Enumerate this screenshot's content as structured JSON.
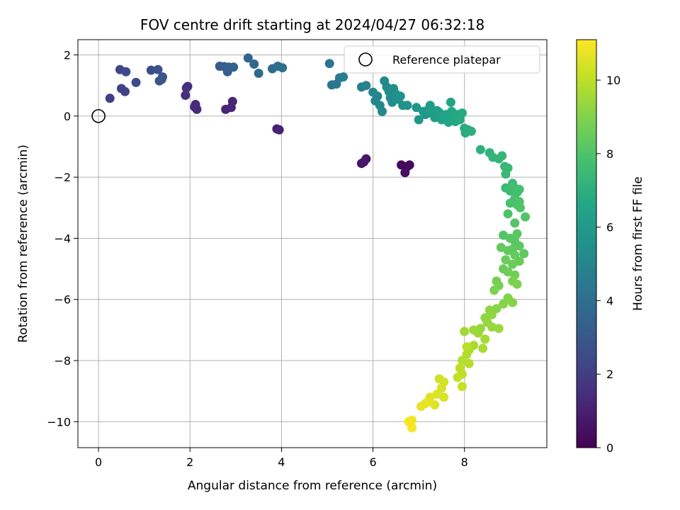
{
  "chart_data": {
    "type": "scatter",
    "title": "FOV centre drift starting at 2024/04/27 06:32:18",
    "xlabel": "Angular distance from reference (arcmin)",
    "ylabel": "Rotation from reference (arcmin)",
    "colorbar_label": "Hours from first FF file",
    "xlim": [
      -0.45,
      9.8
    ],
    "ylim": [
      -10.85,
      2.5
    ],
    "clim": [
      0,
      11.1
    ],
    "colormap": "viridis",
    "grid": true,
    "x_ticks": [
      0,
      2,
      4,
      6,
      8
    ],
    "y_ticks": [
      2,
      0,
      -2,
      -4,
      -6,
      -8,
      -10
    ],
    "colorbar_ticks": [
      0,
      2,
      4,
      6,
      8,
      10
    ],
    "x_tick_labels": [
      "0",
      "2",
      "4",
      "6",
      "8"
    ],
    "y_tick_labels": [
      "2",
      "0",
      "−2",
      "−4",
      "−6",
      "−8",
      "−10"
    ],
    "colorbar_tick_labels": [
      "0",
      "2",
      "4",
      "6",
      "8",
      "10"
    ],
    "reference": {
      "x": 0,
      "y": 0,
      "label": "Reference platepar"
    },
    "legend": {
      "position": "top-right",
      "entries": [
        "Reference platepar"
      ]
    },
    "series": [
      {
        "points": [
          [
            6.62,
            -1.6,
            0.2
          ],
          [
            6.75,
            -1.65,
            0.3
          ],
          [
            6.8,
            -1.6,
            0.35
          ],
          [
            6.7,
            -1.85,
            0.4
          ],
          [
            5.75,
            -1.55,
            0.6
          ],
          [
            5.85,
            -1.4,
            0.65
          ],
          [
            5.8,
            -1.5,
            0.7
          ],
          [
            3.9,
            -0.42,
            0.9
          ],
          [
            3.95,
            -0.45,
            1.0
          ],
          [
            2.78,
            0.22,
            1.1
          ],
          [
            2.9,
            0.28,
            1.15
          ],
          [
            2.93,
            0.48,
            1.2
          ],
          [
            2.1,
            0.3,
            1.3
          ],
          [
            2.15,
            0.22,
            1.35
          ],
          [
            2.12,
            0.38,
            1.4
          ],
          [
            1.9,
            0.68,
            1.5
          ],
          [
            1.92,
            0.92,
            1.55
          ],
          [
            1.95,
            0.97,
            1.6
          ],
          [
            0.25,
            0.58,
            2.0
          ],
          [
            0.5,
            0.9,
            2.1
          ],
          [
            0.58,
            0.8,
            2.2
          ],
          [
            0.47,
            1.52,
            2.3
          ],
          [
            0.6,
            1.45,
            2.4
          ],
          [
            0.82,
            1.1,
            2.5
          ],
          [
            1.15,
            1.5,
            2.6
          ],
          [
            1.3,
            1.52,
            2.7
          ],
          [
            1.33,
            1.15,
            2.8
          ],
          [
            1.4,
            1.28,
            2.9
          ],
          [
            1.38,
            1.2,
            3.0
          ],
          [
            2.65,
            1.63,
            3.2
          ],
          [
            2.75,
            1.62,
            3.25
          ],
          [
            2.82,
            1.45,
            3.3
          ],
          [
            2.85,
            1.6,
            3.35
          ],
          [
            2.95,
            1.6,
            3.4
          ],
          [
            3.27,
            1.9,
            3.6
          ],
          [
            3.4,
            1.7,
            3.7
          ],
          [
            3.5,
            1.4,
            3.8
          ],
          [
            3.8,
            1.55,
            3.9
          ],
          [
            3.92,
            1.63,
            4.0
          ],
          [
            4.02,
            1.58,
            4.05
          ],
          [
            5.05,
            1.72,
            4.3
          ],
          [
            5.1,
            1.02,
            4.4
          ],
          [
            5.2,
            1.05,
            4.5
          ],
          [
            5.27,
            1.25,
            4.6
          ],
          [
            5.35,
            1.28,
            4.7
          ],
          [
            5.75,
            0.95,
            4.8
          ],
          [
            5.85,
            1.0,
            4.9
          ],
          [
            6.0,
            0.78,
            5.0
          ],
          [
            6.05,
            0.5,
            5.0
          ],
          [
            6.1,
            0.65,
            5.05
          ],
          [
            6.15,
            0.35,
            5.1
          ],
          [
            6.2,
            0.15,
            5.15
          ],
          [
            6.25,
            1.15,
            5.2
          ],
          [
            6.3,
            0.95,
            5.25
          ],
          [
            6.35,
            0.8,
            5.3
          ],
          [
            6.38,
            0.6,
            5.35
          ],
          [
            6.42,
            0.45,
            5.4
          ],
          [
            6.45,
            0.9,
            5.45
          ],
          [
            6.5,
            0.72,
            5.5
          ],
          [
            6.55,
            0.55,
            5.55
          ],
          [
            6.6,
            0.65,
            5.6
          ],
          [
            6.65,
            0.35,
            5.65
          ],
          [
            6.75,
            0.35,
            5.7
          ],
          [
            6.95,
            0.28,
            5.8
          ],
          [
            7.0,
            -0.12,
            5.85
          ],
          [
            7.1,
            0.15,
            5.9
          ],
          [
            7.15,
            0.05,
            5.95
          ],
          [
            7.2,
            0.2,
            6.0
          ],
          [
            7.25,
            0.35,
            6.05
          ],
          [
            7.3,
            0.08,
            6.1
          ],
          [
            7.35,
            -0.05,
            6.15
          ],
          [
            7.4,
            0.18,
            6.2
          ],
          [
            7.45,
            0.12,
            6.25
          ],
          [
            7.5,
            -0.12,
            6.3
          ],
          [
            7.55,
            0.0,
            6.35
          ],
          [
            7.6,
            0.05,
            6.4
          ],
          [
            7.65,
            -0.2,
            6.45
          ],
          [
            7.7,
            0.45,
            6.5
          ],
          [
            7.72,
            0.15,
            6.55
          ],
          [
            7.75,
            -0.08,
            6.6
          ],
          [
            7.8,
            -0.18,
            6.65
          ],
          [
            7.85,
            0.05,
            6.7
          ],
          [
            7.9,
            -0.12,
            6.75
          ],
          [
            7.95,
            0.1,
            6.8
          ],
          [
            8.0,
            -0.4,
            6.85
          ],
          [
            8.02,
            -0.55,
            6.9
          ],
          [
            8.08,
            -0.45,
            6.95
          ],
          [
            8.15,
            -0.5,
            7.0
          ],
          [
            8.35,
            -1.1,
            7.1
          ],
          [
            8.55,
            -1.2,
            7.15
          ],
          [
            8.62,
            -1.35,
            7.2
          ],
          [
            8.75,
            -1.4,
            7.25
          ],
          [
            8.82,
            -1.3,
            7.3
          ],
          [
            8.88,
            -1.65,
            7.35
          ],
          [
            8.9,
            -1.9,
            7.4
          ],
          [
            8.95,
            -1.7,
            7.45
          ],
          [
            8.9,
            -2.35,
            7.5
          ],
          [
            9.0,
            -2.45,
            7.55
          ],
          [
            9.05,
            -2.2,
            7.6
          ],
          [
            9.1,
            -2.35,
            7.65
          ],
          [
            9.15,
            -2.5,
            7.7
          ],
          [
            9.2,
            -2.4,
            7.75
          ],
          [
            9.1,
            -2.7,
            7.8
          ],
          [
            9.0,
            -2.85,
            7.85
          ],
          [
            9.15,
            -2.9,
            7.9
          ],
          [
            9.2,
            -2.8,
            7.95
          ],
          [
            9.22,
            -3.0,
            8.0
          ],
          [
            8.95,
            -3.2,
            8.0
          ],
          [
            9.33,
            -3.3,
            8.05
          ],
          [
            9.1,
            -3.5,
            8.1
          ],
          [
            8.85,
            -3.9,
            8.1
          ],
          [
            9.0,
            -4.0,
            8.15
          ],
          [
            9.1,
            -4.1,
            8.2
          ],
          [
            9.15,
            -3.85,
            8.2
          ],
          [
            9.2,
            -4.25,
            8.25
          ],
          [
            9.05,
            -4.35,
            8.3
          ],
          [
            8.95,
            -4.4,
            8.35
          ],
          [
            9.3,
            -4.5,
            8.35
          ],
          [
            8.8,
            -4.3,
            8.4
          ],
          [
            9.1,
            -4.55,
            8.45
          ],
          [
            8.9,
            -4.7,
            8.5
          ],
          [
            9.2,
            -4.75,
            8.5
          ],
          [
            8.85,
            -5.0,
            8.55
          ],
          [
            9.05,
            -4.85,
            8.6
          ],
          [
            8.95,
            -5.1,
            8.65
          ],
          [
            9.1,
            -5.2,
            8.7
          ],
          [
            8.7,
            -5.4,
            8.75
          ],
          [
            8.75,
            -5.55,
            8.8
          ],
          [
            9.05,
            -5.4,
            8.85
          ],
          [
            9.15,
            -5.5,
            8.9
          ],
          [
            8.65,
            -5.7,
            8.9
          ],
          [
            8.95,
            -5.95,
            9.0
          ],
          [
            9.05,
            -6.1,
            9.05
          ],
          [
            8.85,
            -6.15,
            9.1
          ],
          [
            8.7,
            -6.3,
            9.1
          ],
          [
            8.55,
            -6.35,
            9.15
          ],
          [
            8.6,
            -6.5,
            9.2
          ],
          [
            8.45,
            -6.6,
            9.25
          ],
          [
            8.5,
            -6.75,
            9.3
          ],
          [
            8.35,
            -6.95,
            9.35
          ],
          [
            8.6,
            -6.9,
            9.4
          ],
          [
            8.75,
            -6.95,
            9.45
          ],
          [
            8.3,
            -7.1,
            9.45
          ],
          [
            8.2,
            -7.0,
            9.5
          ],
          [
            8.0,
            -7.05,
            9.55
          ],
          [
            8.45,
            -7.3,
            9.6
          ],
          [
            8.4,
            -7.6,
            9.65
          ],
          [
            8.2,
            -7.5,
            9.7
          ],
          [
            8.1,
            -7.65,
            9.75
          ],
          [
            8.05,
            -7.8,
            9.8
          ],
          [
            7.95,
            -8.0,
            9.85
          ],
          [
            8.1,
            -8.1,
            9.9
          ],
          [
            8.05,
            -7.55,
            9.9
          ],
          [
            7.9,
            -8.25,
            10.0
          ],
          [
            7.95,
            -8.45,
            10.05
          ],
          [
            7.85,
            -8.55,
            10.1
          ],
          [
            7.95,
            -8.85,
            10.15
          ],
          [
            7.45,
            -8.6,
            10.3
          ],
          [
            7.55,
            -8.7,
            10.35
          ],
          [
            7.5,
            -8.9,
            10.4
          ],
          [
            7.55,
            -9.2,
            10.45
          ],
          [
            7.4,
            -9.1,
            10.5
          ],
          [
            7.35,
            -9.45,
            10.55
          ],
          [
            7.25,
            -9.2,
            10.6
          ],
          [
            7.2,
            -9.35,
            10.65
          ],
          [
            7.15,
            -9.4,
            10.7
          ],
          [
            7.05,
            -9.5,
            10.75
          ],
          [
            6.85,
            -9.95,
            10.9
          ],
          [
            6.78,
            -10.0,
            10.95
          ],
          [
            6.85,
            -10.2,
            11.0
          ]
        ]
      }
    ]
  }
}
